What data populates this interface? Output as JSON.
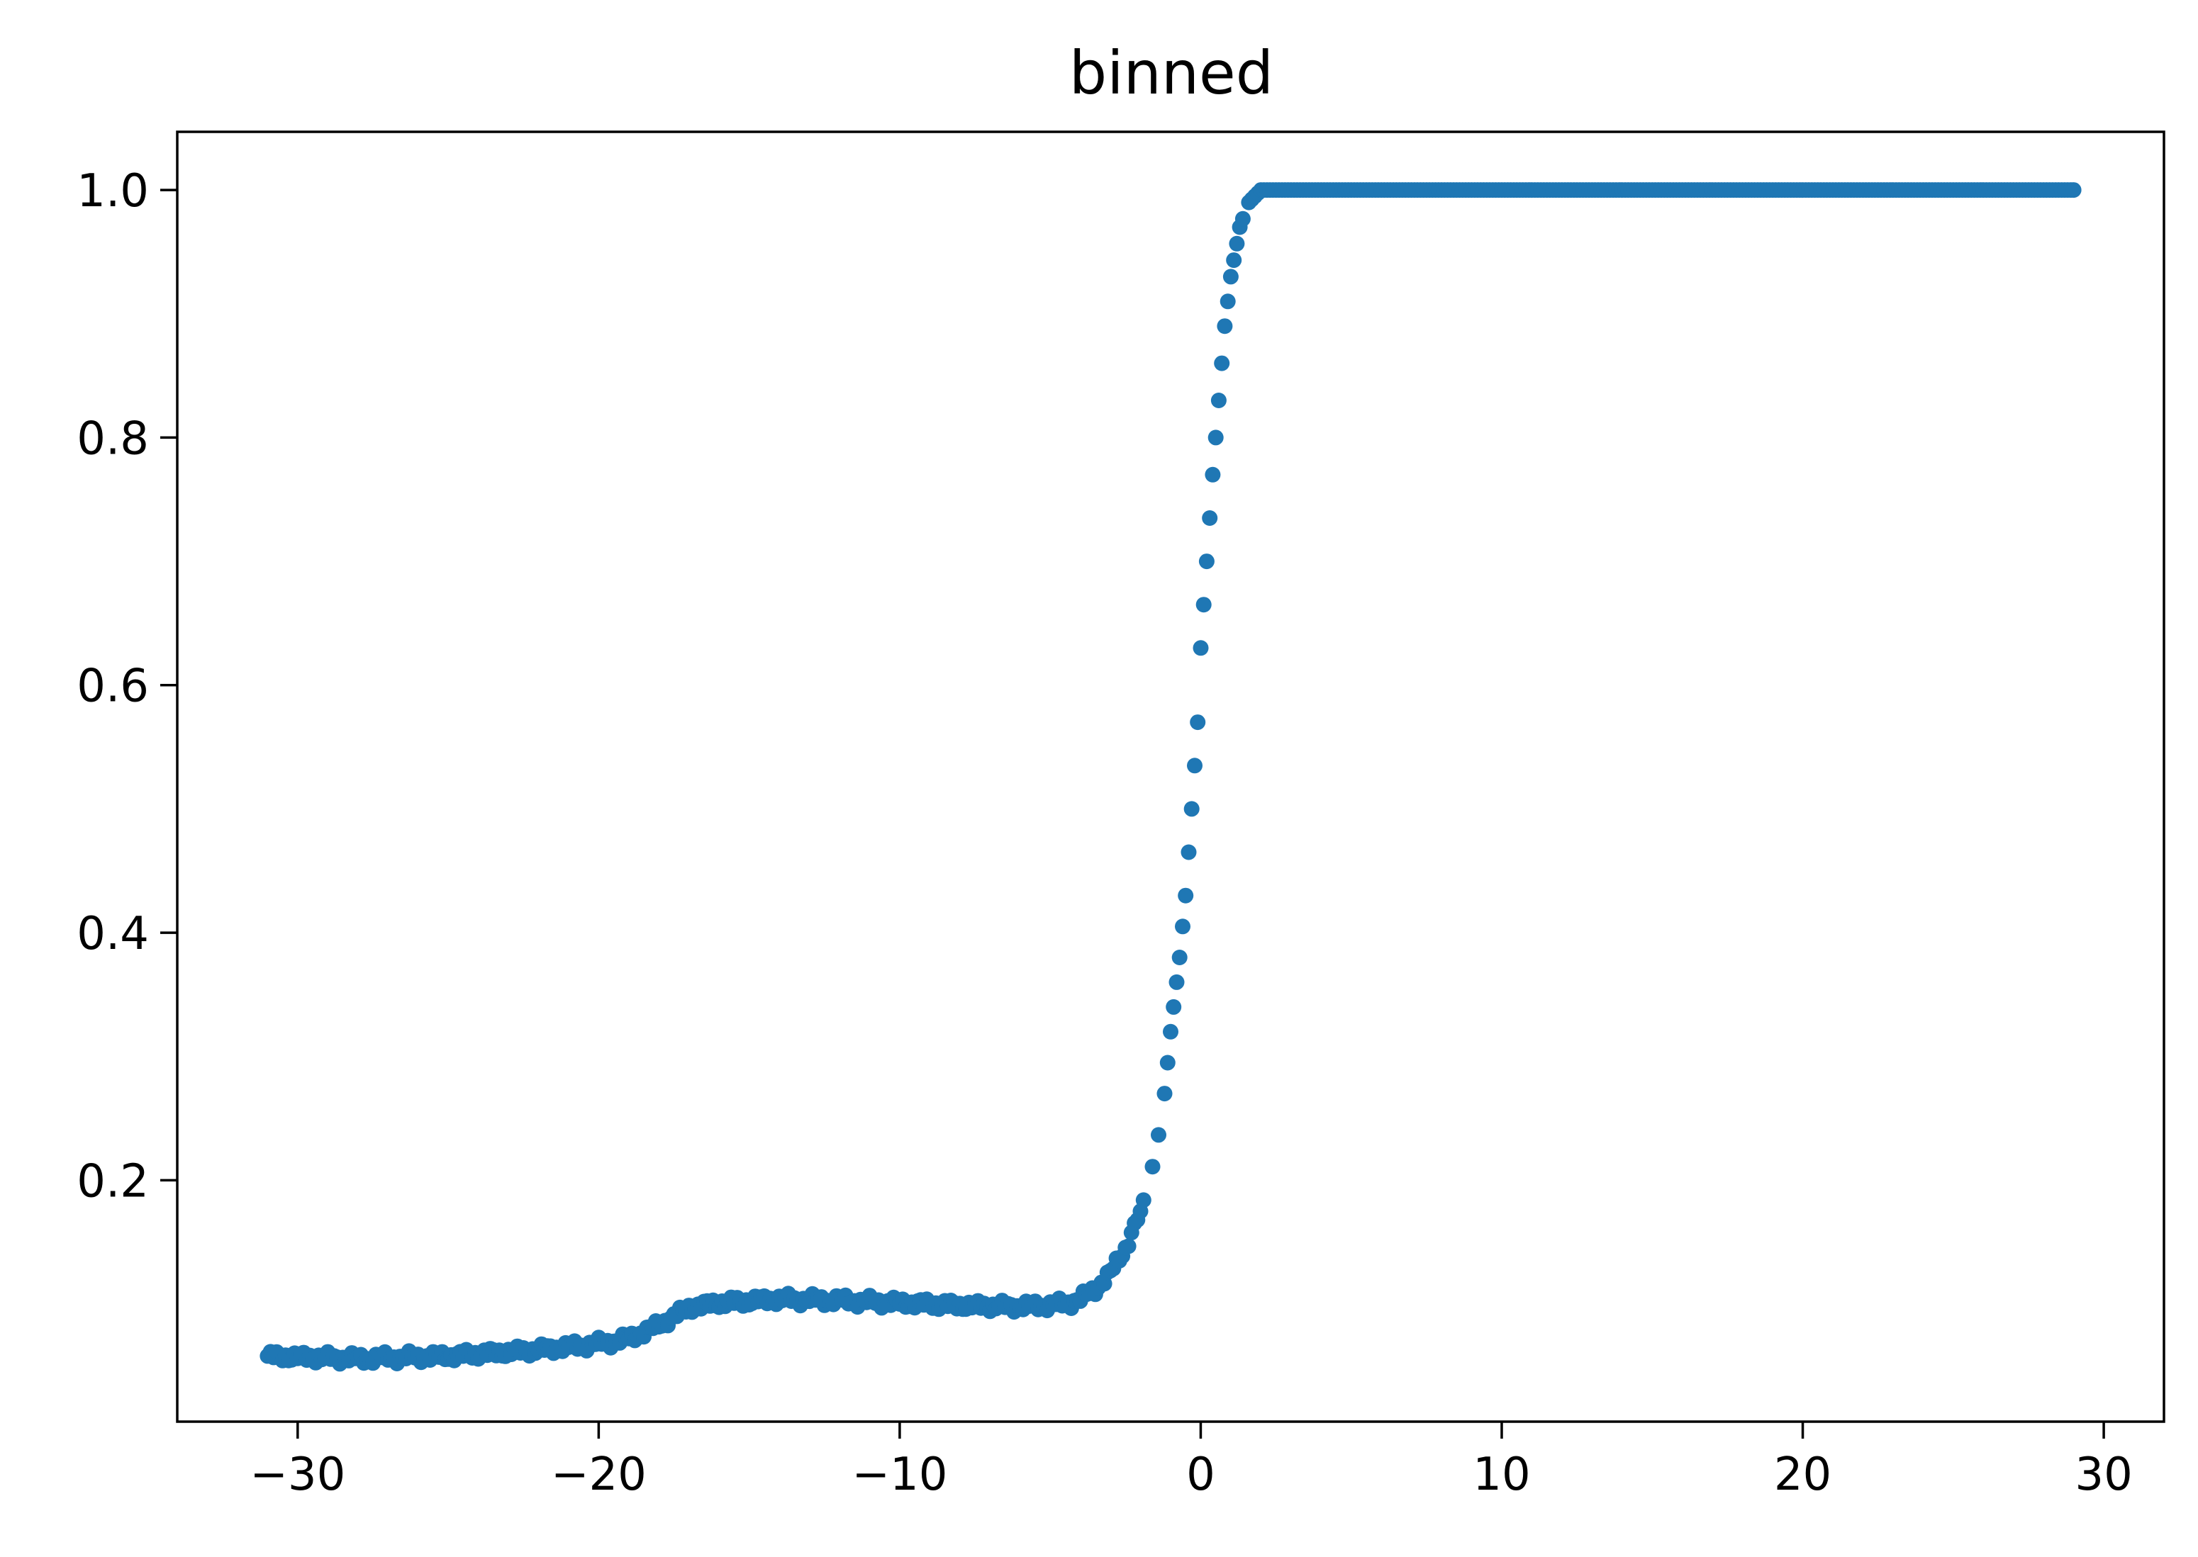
{
  "chart_data": {
    "type": "scatter",
    "title": "binned",
    "xlabel": "",
    "ylabel": "",
    "xlim": [
      -34,
      32
    ],
    "ylim": [
      0.005,
      1.047
    ],
    "grid": false,
    "legend": "none",
    "marker_color": "#1f77b4",
    "x_ticks": [
      {
        "value": -30,
        "label": "−30"
      },
      {
        "value": -20,
        "label": "−20"
      },
      {
        "value": -10,
        "label": "−10"
      },
      {
        "value": 0,
        "label": "0"
      },
      {
        "value": 10,
        "label": "10"
      },
      {
        "value": 20,
        "label": "20"
      },
      {
        "value": 30,
        "label": "30"
      }
    ],
    "y_ticks": [
      {
        "value": 0.2,
        "label": "0.2"
      },
      {
        "value": 0.4,
        "label": "0.4"
      },
      {
        "value": 0.6,
        "label": "0.6"
      },
      {
        "value": 0.8,
        "label": "0.8"
      },
      {
        "value": 1.0,
        "label": "1.0"
      }
    ],
    "curve": [
      [
        -31,
        0.058
      ],
      [
        -28,
        0.056
      ],
      [
        -25,
        0.058
      ],
      [
        -22,
        0.063
      ],
      [
        -20,
        0.068
      ],
      [
        -19,
        0.072
      ],
      [
        -18,
        0.083
      ],
      [
        -17,
        0.097
      ],
      [
        -16,
        0.101
      ],
      [
        -14,
        0.104
      ],
      [
        -12,
        0.103
      ],
      [
        -10,
        0.101
      ],
      [
        -8,
        0.099
      ],
      [
        -6,
        0.098
      ],
      [
        -4.5,
        0.1
      ],
      [
        -4,
        0.104
      ],
      [
        -3.5,
        0.112
      ],
      [
        -3,
        0.125
      ],
      [
        -2.5,
        0.145
      ],
      [
        -2,
        0.175
      ],
      [
        -1.5,
        0.22
      ],
      [
        -1.2,
        0.27
      ],
      [
        -1,
        0.32
      ],
      [
        -0.7,
        0.38
      ],
      [
        -0.5,
        0.43
      ],
      [
        -0.3,
        0.5
      ],
      [
        -0.1,
        0.57
      ],
      [
        0,
        0.63
      ],
      [
        0.2,
        0.7
      ],
      [
        0.4,
        0.77
      ],
      [
        0.6,
        0.83
      ],
      [
        0.8,
        0.89
      ],
      [
        1,
        0.93
      ],
      [
        1.3,
        0.97
      ],
      [
        1.6,
        0.99
      ],
      [
        2,
        1.0
      ],
      [
        29,
        1.0
      ]
    ],
    "dense_points": {
      "x_start": -31,
      "x_end": 29,
      "step": 0.1
    },
    "sparse_points_x": [
      -1.6,
      -1.4,
      -1.2,
      -1.1,
      -1.0,
      -0.9,
      -0.8,
      -0.7,
      -0.6,
      -0.5,
      -0.4,
      -0.3,
      -0.2,
      -0.1,
      0.0,
      0.1,
      0.2,
      0.3,
      0.4,
      0.5,
      0.6,
      0.7,
      0.8,
      0.9,
      1.0,
      1.1,
      1.2,
      1.3,
      1.4
    ]
  }
}
